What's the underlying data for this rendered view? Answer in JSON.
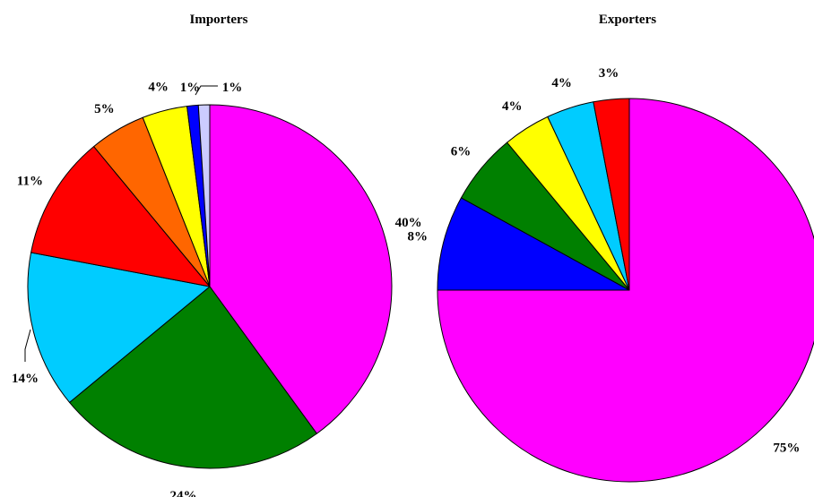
{
  "chart_data": [
    {
      "type": "pie",
      "title": "Importers",
      "values": [
        40,
        24,
        14,
        11,
        5,
        4,
        1,
        1
      ],
      "labels": [
        "40%",
        "24%",
        "14%",
        "11%",
        "5%",
        "4%",
        "1%",
        "1%"
      ],
      "colors": [
        "#FF00FF",
        "#008000",
        "#00CCFF",
        "#FF0000",
        "#FF6600",
        "#FFFF00",
        "#0000FF",
        "#CCCCFF"
      ]
    },
    {
      "type": "pie",
      "title": "Exporters",
      "values": [
        75,
        8,
        6,
        4,
        4,
        3
      ],
      "labels": [
        "75%",
        "8%",
        "6%",
        "4%",
        "4%",
        "3%"
      ],
      "colors": [
        "#FF00FF",
        "#0000FF",
        "#008000",
        "#FFFF00",
        "#00CCFF",
        "#FF0000"
      ]
    }
  ]
}
